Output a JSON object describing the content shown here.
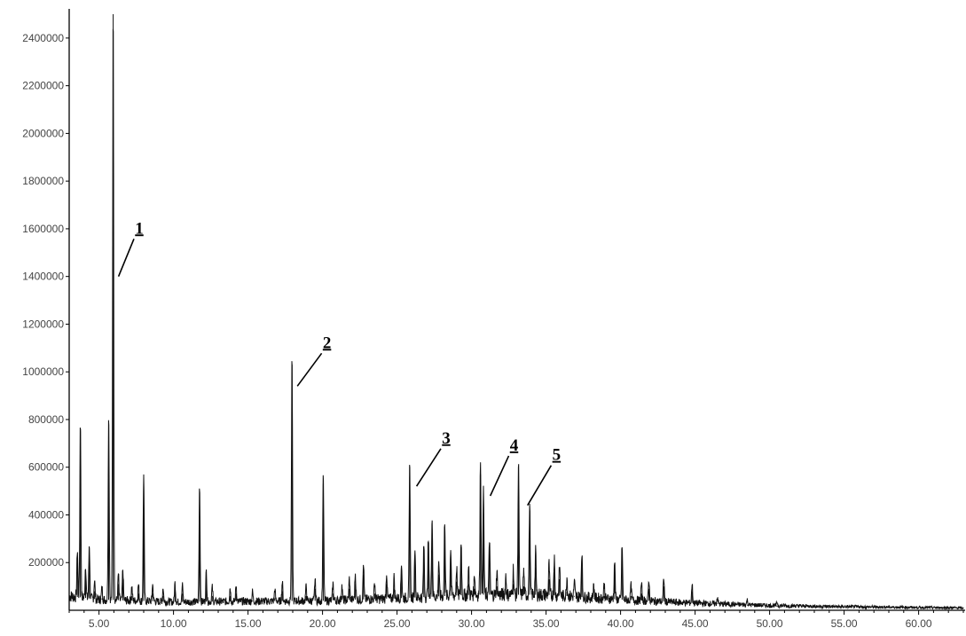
{
  "chart_data": {
    "type": "line",
    "title": "",
    "xlabel": "",
    "ylabel": "",
    "xlim": [
      3.0,
      63.0
    ],
    "ylim": [
      0,
      2500000
    ],
    "grid": false,
    "legend": "none",
    "colors": {
      "line": "#111111",
      "axis": "#000000",
      "text": "#444444"
    },
    "x_ticks": [
      5.0,
      10.0,
      15.0,
      20.0,
      25.0,
      30.0,
      35.0,
      40.0,
      45.0,
      50.0,
      55.0,
      60.0
    ],
    "x_tick_labels": [
      "5.00",
      "10.00",
      "15.00",
      "20.00",
      "25.00",
      "30.00",
      "35.00",
      "40.00",
      "45.00",
      "50.00",
      "55.00",
      "60.00"
    ],
    "y_ticks": [
      200000,
      400000,
      600000,
      800000,
      1000000,
      1200000,
      1400000,
      1600000,
      1800000,
      2000000,
      2200000,
      2400000
    ],
    "y_tick_labels": [
      "200000",
      "400000",
      "600000",
      "800000",
      "1000000",
      "1200000",
      "1400000",
      "1600000",
      "1800000",
      "2000000",
      "2200000",
      "2400000"
    ],
    "peaks": [
      {
        "x": 3.55,
        "y": 200000
      },
      {
        "x": 3.75,
        "y": 750000
      },
      {
        "x": 4.1,
        "y": 140000
      },
      {
        "x": 4.35,
        "y": 230000
      },
      {
        "x": 4.7,
        "y": 80000
      },
      {
        "x": 5.2,
        "y": 50000
      },
      {
        "x": 5.65,
        "y": 780000
      },
      {
        "x": 5.95,
        "y": 2500000
      },
      {
        "x": 6.3,
        "y": 110000
      },
      {
        "x": 6.6,
        "y": 130000
      },
      {
        "x": 7.2,
        "y": 60000
      },
      {
        "x": 7.65,
        "y": 70000
      },
      {
        "x": 8.0,
        "y": 540000
      },
      {
        "x": 8.6,
        "y": 70000
      },
      {
        "x": 9.3,
        "y": 60000
      },
      {
        "x": 10.1,
        "y": 80000
      },
      {
        "x": 10.6,
        "y": 70000
      },
      {
        "x": 11.75,
        "y": 490000
      },
      {
        "x": 12.2,
        "y": 130000
      },
      {
        "x": 12.6,
        "y": 60000
      },
      {
        "x": 13.8,
        "y": 60000
      },
      {
        "x": 14.2,
        "y": 70000
      },
      {
        "x": 15.3,
        "y": 40000
      },
      {
        "x": 16.8,
        "y": 50000
      },
      {
        "x": 17.3,
        "y": 80000
      },
      {
        "x": 17.95,
        "y": 1030000
      },
      {
        "x": 18.9,
        "y": 60000
      },
      {
        "x": 19.5,
        "y": 90000
      },
      {
        "x": 20.05,
        "y": 530000
      },
      {
        "x": 20.7,
        "y": 70000
      },
      {
        "x": 21.3,
        "y": 60000
      },
      {
        "x": 21.8,
        "y": 90000
      },
      {
        "x": 22.2,
        "y": 110000
      },
      {
        "x": 22.75,
        "y": 150000
      },
      {
        "x": 23.5,
        "y": 70000
      },
      {
        "x": 24.3,
        "y": 110000
      },
      {
        "x": 24.8,
        "y": 90000
      },
      {
        "x": 25.3,
        "y": 150000
      },
      {
        "x": 25.85,
        "y": 560000
      },
      {
        "x": 26.2,
        "y": 220000
      },
      {
        "x": 26.8,
        "y": 220000
      },
      {
        "x": 27.1,
        "y": 240000
      },
      {
        "x": 27.35,
        "y": 340000
      },
      {
        "x": 27.8,
        "y": 150000
      },
      {
        "x": 28.2,
        "y": 320000
      },
      {
        "x": 28.6,
        "y": 200000
      },
      {
        "x": 29.0,
        "y": 120000
      },
      {
        "x": 29.3,
        "y": 230000
      },
      {
        "x": 29.8,
        "y": 110000
      },
      {
        "x": 30.2,
        "y": 90000
      },
      {
        "x": 30.6,
        "y": 570000
      },
      {
        "x": 30.8,
        "y": 440000
      },
      {
        "x": 31.2,
        "y": 240000
      },
      {
        "x": 31.7,
        "y": 100000
      },
      {
        "x": 32.3,
        "y": 80000
      },
      {
        "x": 32.8,
        "y": 110000
      },
      {
        "x": 33.15,
        "y": 560000
      },
      {
        "x": 33.5,
        "y": 100000
      },
      {
        "x": 33.9,
        "y": 380000
      },
      {
        "x": 34.3,
        "y": 180000
      },
      {
        "x": 35.2,
        "y": 130000
      },
      {
        "x": 35.55,
        "y": 160000
      },
      {
        "x": 35.9,
        "y": 130000
      },
      {
        "x": 36.4,
        "y": 80000
      },
      {
        "x": 36.9,
        "y": 60000
      },
      {
        "x": 37.4,
        "y": 190000
      },
      {
        "x": 38.2,
        "y": 50000
      },
      {
        "x": 38.9,
        "y": 60000
      },
      {
        "x": 39.6,
        "y": 160000
      },
      {
        "x": 40.1,
        "y": 230000
      },
      {
        "x": 40.7,
        "y": 60000
      },
      {
        "x": 41.4,
        "y": 70000
      },
      {
        "x": 41.9,
        "y": 90000
      },
      {
        "x": 42.9,
        "y": 100000
      },
      {
        "x": 44.8,
        "y": 80000
      },
      {
        "x": 46.5,
        "y": 30000
      },
      {
        "x": 48.5,
        "y": 20000
      },
      {
        "x": 50.5,
        "y": 15000
      }
    ],
    "baseline": [
      {
        "x": 3.0,
        "y": 60000
      },
      {
        "x": 5.0,
        "y": 45000
      },
      {
        "x": 10.0,
        "y": 35000
      },
      {
        "x": 20.0,
        "y": 40000
      },
      {
        "x": 25.0,
        "y": 50000
      },
      {
        "x": 30.0,
        "y": 65000
      },
      {
        "x": 35.0,
        "y": 65000
      },
      {
        "x": 40.0,
        "y": 45000
      },
      {
        "x": 45.0,
        "y": 30000
      },
      {
        "x": 50.0,
        "y": 20000
      },
      {
        "x": 55.0,
        "y": 15000
      },
      {
        "x": 63.0,
        "y": 10000
      }
    ],
    "annotations": [
      {
        "label": "1",
        "peak_x": 5.95,
        "peak_y": 1400000,
        "text_x": 7.7,
        "text_y": 1580000
      },
      {
        "label": "2",
        "peak_x": 17.95,
        "peak_y": 940000,
        "text_x": 20.3,
        "text_y": 1100000
      },
      {
        "label": "3",
        "peak_x": 25.95,
        "peak_y": 520000,
        "text_x": 28.3,
        "text_y": 700000
      },
      {
        "label": "4",
        "peak_x": 30.9,
        "peak_y": 480000,
        "text_x": 32.85,
        "text_y": 670000
      },
      {
        "label": "5",
        "peak_x": 33.4,
        "peak_y": 440000,
        "text_x": 35.7,
        "text_y": 630000
      }
    ]
  }
}
